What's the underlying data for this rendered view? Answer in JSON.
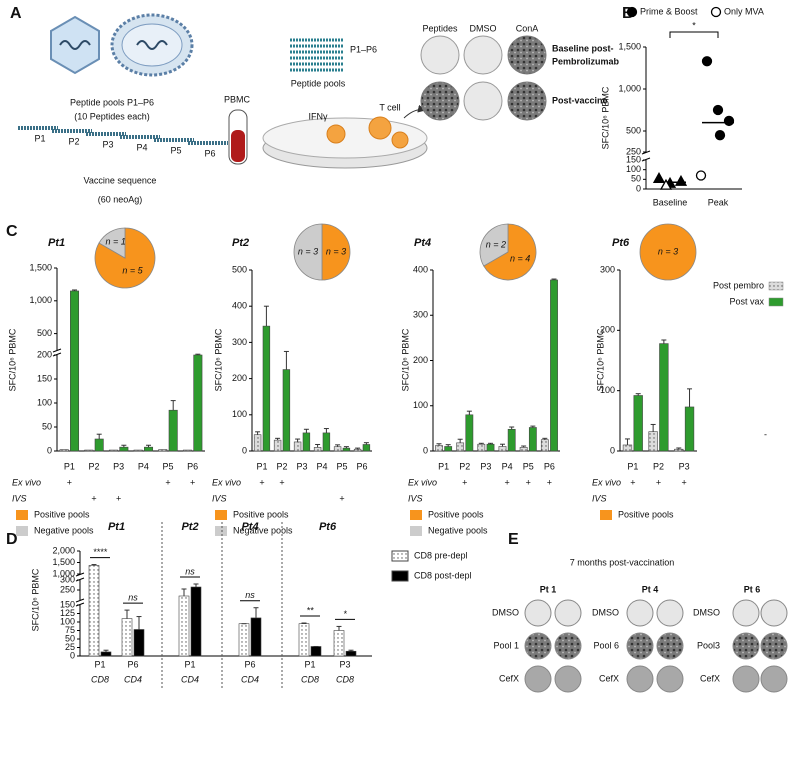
{
  "panel_letters": [
    "A",
    "B",
    "C",
    "D",
    "E"
  ],
  "panel_a": {
    "peptide_pools_label": "Peptide pools P1–P6",
    "peptides_each": "(10 Peptides each)",
    "pools": [
      "P1",
      "P2",
      "P3",
      "P4",
      "P5",
      "P6"
    ],
    "vaccine_sequence": "Vaccine sequence",
    "neoag": "(60 neoAg)",
    "pool_tube_label": "P1–P6",
    "pool_tube_sublabel": "Peptide pools",
    "pbmc": "PBMC",
    "ifn": "IFNγ",
    "t_cell": "T cell",
    "well_columns": [
      "Peptides",
      "DMSO",
      "ConA"
    ],
    "well_rows": [
      [
        "Baseline post-",
        "Pembrolizumab"
      ],
      [
        "Post-vaccine"
      ]
    ]
  },
  "panel_e": {
    "title": "7 months post-vaccination",
    "patients": [
      {
        "name": "Pt 1",
        "rows": [
          "DMSO",
          "Pool 1",
          "CefX"
        ]
      },
      {
        "name": "Pt 4",
        "rows": [
          "DMSO",
          "Pool 6",
          "CefX"
        ]
      },
      {
        "name": "Pt 6",
        "rows": [
          "DMSO",
          "Pool3",
          "CefX"
        ]
      }
    ]
  },
  "chart_data": [
    {
      "type": "scatter",
      "ylabel": "SFC/10⁶ PBMC",
      "categories": [
        "Baseline",
        "Peak"
      ],
      "markers": [
        "triangle",
        "circle"
      ],
      "y_segments": [
        {
          "ylim": [
            0,
            150
          ],
          "yticks": [
            0,
            50,
            100,
            150
          ]
        },
        {
          "ylim": [
            250,
            1500
          ],
          "yticks": [
            250,
            500,
            {
              "value": 1000,
              "label": "1,000"
            },
            {
              "value": 1500,
              "label": "1,500"
            }
          ]
        }
      ],
      "series": [
        {
          "name": "Prime & Boost",
          "color": "#000000",
          "filled": true,
          "x": [
            "Baseline",
            "Baseline",
            "Baseline",
            "Peak",
            "Peak",
            "Peak",
            "Peak"
          ],
          "values": [
            55,
            30,
            40,
            1330,
            750,
            620,
            450
          ]
        },
        {
          "name": "Only MVA",
          "color": "#000000",
          "filled": false,
          "x": [
            "Baseline",
            "Peak"
          ],
          "values": [
            20,
            70
          ]
        }
      ],
      "means": [
        35,
        600
      ],
      "significance": "*"
    },
    {
      "type": "bar",
      "title": "Pt1",
      "ylabel": "SFC/10⁶ PBMC",
      "categories": [
        "P1",
        "P2",
        "P3",
        "P4",
        "P5",
        "P6"
      ],
      "y_segments": [
        {
          "ylim": [
            0,
            200
          ],
          "yticks": [
            0,
            50,
            100,
            150,
            200
          ]
        },
        {
          "ylim": [
            250,
            1500
          ],
          "yticks": [
            500,
            {
              "value": 1000,
              "label": "1,000"
            },
            {
              "value": 1500,
              "label": "1,500"
            }
          ]
        }
      ],
      "series": [
        {
          "color": "#dcdcdc",
          "fill_pattern": "dotted",
          "values": [
            3,
            2,
            2,
            2,
            3,
            2
          ]
        },
        {
          "color": "#2e9b2e",
          "values": [
            1150,
            25,
            8,
            8,
            85,
            200
          ],
          "errors": [
            15,
            10,
            4,
            4,
            20,
            8
          ]
        }
      ],
      "rows": [
        {
          "label": "Ex vivo",
          "marks": [
            "+",
            null,
            null,
            null,
            "+",
            "+"
          ]
        },
        {
          "label": "IVS",
          "marks": [
            null,
            "+",
            "+",
            null,
            null,
            null
          ]
        }
      ],
      "pie": {
        "categories": [
          "Positive pools",
          "Negative pools"
        ],
        "colors": [
          "#f7941d",
          "#cccccc"
        ],
        "values": [
          5,
          1
        ],
        "value_labels": [
          "n = 5",
          "n = 1"
        ]
      }
    },
    {
      "type": "bar",
      "title": "Pt2",
      "ylabel": "SFC/10⁶ PBMC",
      "categories": [
        "P1",
        "P2",
        "P3",
        "P4",
        "P5",
        "P6"
      ],
      "ylim": [
        0,
        500
      ],
      "yticks": [
        0,
        100,
        200,
        300,
        400,
        500
      ],
      "series": [
        {
          "color": "#dcdcdc",
          "fill_pattern": "dotted",
          "values": [
            45,
            30,
            25,
            10,
            12,
            5
          ],
          "errors": [
            8,
            5,
            8,
            8,
            5,
            3
          ]
        },
        {
          "color": "#2e9b2e",
          "values": [
            345,
            225,
            50,
            50,
            8,
            18
          ],
          "errors": [
            55,
            50,
            10,
            12,
            4,
            5
          ]
        }
      ],
      "rows": [
        {
          "label": "Ex vivo",
          "marks": [
            "+",
            "+",
            null,
            null,
            null,
            null
          ]
        },
        {
          "label": "IVS",
          "marks": [
            null,
            null,
            null,
            null,
            "+",
            null
          ]
        }
      ],
      "pie": {
        "categories": [
          "Positive pools",
          "Negative pools"
        ],
        "colors": [
          "#f7941d",
          "#cccccc"
        ],
        "values": [
          3,
          3
        ],
        "value_labels": [
          "n = 3",
          "n = 3"
        ]
      }
    },
    {
      "type": "bar",
      "title": "Pt4",
      "ylabel": "SFC/10⁶ PBMC",
      "categories": [
        "P1",
        "P2",
        "P3",
        "P4",
        "P5",
        "P6"
      ],
      "ylim": [
        0,
        400
      ],
      "yticks": [
        0,
        100,
        200,
        300,
        400
      ],
      "series": [
        {
          "color": "#dcdcdc",
          "fill_pattern": "dotted",
          "values": [
            12,
            18,
            15,
            10,
            8,
            25
          ],
          "errors": [
            4,
            8,
            2,
            5,
            3,
            3
          ]
        },
        {
          "color": "#2e9b2e",
          "values": [
            10,
            80,
            15,
            48,
            52,
            378
          ],
          "errors": [
            4,
            8,
            2,
            5,
            3,
            2
          ]
        }
      ],
      "rows": [
        {
          "label": "Ex vivo",
          "marks": [
            null,
            "+",
            null,
            "+",
            "+",
            "+"
          ]
        },
        {
          "label": "IVS",
          "marks": [
            null,
            null,
            null,
            null,
            null,
            null
          ]
        }
      ],
      "pie": {
        "categories": [
          "Positive pools",
          "Negative pools"
        ],
        "colors": [
          "#f7941d",
          "#cccccc"
        ],
        "values": [
          4,
          2
        ],
        "value_labels": [
          "n = 4",
          "n = 2"
        ]
      }
    },
    {
      "type": "bar",
      "title": "Pt6",
      "ylabel": "SFC/10⁶ PBMC",
      "categories": [
        "P1",
        "P2",
        "P3"
      ],
      "ylim": [
        0,
        300
      ],
      "yticks": [
        0,
        100,
        200,
        300
      ],
      "series": [
        {
          "name": "Post pembro",
          "color": "#dcdcdc",
          "fill_pattern": "dotted",
          "values": [
            10,
            32,
            3
          ],
          "errors": [
            10,
            12,
            2
          ]
        },
        {
          "name": "Post vax",
          "color": "#2e9b2e",
          "values": [
            92,
            178,
            73
          ],
          "errors": [
            3,
            6,
            30
          ]
        }
      ],
      "rows": [
        {
          "label": "Ex vivo",
          "marks": [
            "+",
            "+",
            "+"
          ]
        },
        {
          "label": "IVS",
          "marks": [
            null,
            null,
            null
          ]
        }
      ],
      "pie": {
        "categories": [
          "Positive pools"
        ],
        "colors": [
          "#f7941d"
        ],
        "values": [
          3
        ],
        "value_labels": [
          "n = 3"
        ]
      },
      "annotation": "-"
    },
    {
      "type": "bar",
      "ylabel": "SFC/10⁶ PBMC",
      "groups": [
        {
          "name": "Pt1",
          "categories": [
            "P1",
            "P6"
          ],
          "sublabels": [
            "CD8",
            "CD4"
          ]
        },
        {
          "name": "Pt2",
          "categories": [
            "P1"
          ],
          "sublabels": [
            "CD4"
          ]
        },
        {
          "name": "Pt4",
          "categories": [
            "P6"
          ],
          "sublabels": [
            "CD4"
          ]
        },
        {
          "name": "Pt6",
          "categories": [
            "P1",
            "P3"
          ],
          "sublabels": [
            "CD8",
            "CD8"
          ]
        }
      ],
      "significance": [
        "****",
        "ns",
        "ns",
        "ns",
        "**",
        "*"
      ],
      "y_segments": [
        {
          "ylim": [
            0,
            150
          ],
          "yticks": [
            0,
            25,
            50,
            75,
            100,
            125,
            150
          ]
        },
        {
          "ylim": [
            200,
            300
          ],
          "yticks": [
            250,
            300
          ]
        },
        {
          "ylim": [
            1000,
            2000
          ],
          "yticks": [
            {
              "value": 1000,
              "label": "1,000"
            },
            {
              "value": 1500,
              "label": "1,500"
            },
            {
              "value": 2000,
              "label": "2,000"
            }
          ]
        }
      ],
      "series": [
        {
          "name": "CD8 pre-depl",
          "color": "#ffffff",
          "fill_pattern": "dotted",
          "values": [
            1370,
            110,
            220,
            95,
            95,
            75
          ],
          "errors": [
            40,
            25,
            35,
            0,
            2,
            12
          ]
        },
        {
          "name": "CD8 post-depl",
          "color": "#000000",
          "values": [
            12,
            78,
            265,
            112,
            28,
            14
          ],
          "errors": [
            5,
            38,
            15,
            30,
            0,
            3
          ]
        }
      ]
    }
  ]
}
